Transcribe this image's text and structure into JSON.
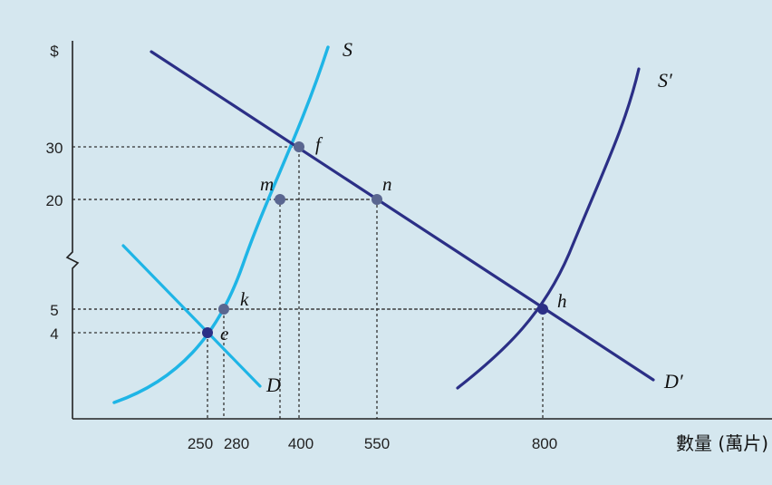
{
  "chart_data": {
    "type": "line",
    "background_color": "#d5e7ef",
    "y_axis": {
      "label": "$",
      "ticks": [
        4,
        5,
        20,
        30
      ],
      "axis_break": true
    },
    "x_axis": {
      "label": "數量 (萬片)",
      "ticks": [
        250,
        280,
        400,
        550,
        800
      ]
    },
    "series": [
      {
        "name": "S",
        "color": "#1fb5e6"
      },
      {
        "name": "D",
        "color": "#1fb5e6"
      },
      {
        "name": "S′",
        "color": "#2b2f86"
      },
      {
        "name": "D′",
        "color": "#2b2f86"
      }
    ],
    "points": [
      {
        "label": "f",
        "x": 400,
        "y": 30
      },
      {
        "label": "m",
        "x": 370,
        "y": 20
      },
      {
        "label": "n",
        "x": 550,
        "y": 20
      },
      {
        "label": "k",
        "x": 280,
        "y": 5
      },
      {
        "label": "e",
        "x": 250,
        "y": 4
      },
      {
        "label": "h",
        "x": 800,
        "y": 5
      }
    ],
    "guides": [
      {
        "x": 400,
        "y": 30
      },
      {
        "x": 550,
        "y": 20
      },
      {
        "x": 370,
        "y": 20
      },
      {
        "x": 800,
        "y": 5
      },
      {
        "x": 280,
        "y": 5
      },
      {
        "x": 250,
        "y": 4
      }
    ]
  }
}
